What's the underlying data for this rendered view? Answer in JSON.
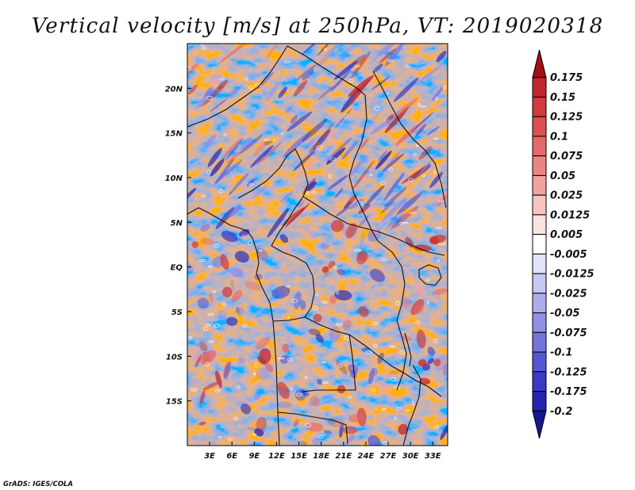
{
  "chart_data": {
    "type": "heatmap",
    "title": "Vertical velocity [m/s] at 250hPa, VT: 2019020318",
    "variable": "Vertical velocity",
    "units": "m/s",
    "level": "250hPa",
    "valid_time": "2019020318",
    "lon_range": [
      0,
      35
    ],
    "lat_range": [
      -20,
      25
    ],
    "x_ticks": [
      {
        "value": 3,
        "label": "3E"
      },
      {
        "value": 6,
        "label": "6E"
      },
      {
        "value": 9,
        "label": "9E"
      },
      {
        "value": 12,
        "label": "12E"
      },
      {
        "value": 15,
        "label": "15E"
      },
      {
        "value": 18,
        "label": "18E"
      },
      {
        "value": 21,
        "label": "21E"
      },
      {
        "value": 24,
        "label": "24E"
      },
      {
        "value": 27,
        "label": "27E"
      },
      {
        "value": 30,
        "label": "30E"
      },
      {
        "value": 33,
        "label": "33E"
      }
    ],
    "y_ticks": [
      {
        "value": 20,
        "label": "20N"
      },
      {
        "value": 15,
        "label": "15N"
      },
      {
        "value": 10,
        "label": "10N"
      },
      {
        "value": 5,
        "label": "5N"
      },
      {
        "value": 0,
        "label": "EQ"
      },
      {
        "value": -5,
        "label": "5S"
      },
      {
        "value": -10,
        "label": "10S"
      },
      {
        "value": -15,
        "label": "15S"
      }
    ],
    "colorbar": {
      "orientation": "vertical",
      "labels": [
        "0.175",
        "0.15",
        "0.125",
        "0.1",
        "0.075",
        "0.05",
        "0.025",
        "0.0125",
        "0.005",
        "-0.005",
        "-0.0125",
        "-0.025",
        "-0.05",
        "-0.075",
        "-0.1",
        "-0.125",
        "-0.175",
        "-0.2"
      ],
      "colors": [
        "#a50f15",
        "#c0272d",
        "#d13b3b",
        "#dd5050",
        "#e46a68",
        "#eb8583",
        "#f2a3a0",
        "#f7c4c1",
        "#fbe3e1",
        "#ffffff",
        "#e2e2fb",
        "#c8c8f5",
        "#adadee",
        "#9090e6",
        "#7474de",
        "#5656d4",
        "#3a3ac4",
        "#2424ad",
        "#15158f"
      ]
    },
    "credit": "GrADS: IGES/COLA"
  }
}
